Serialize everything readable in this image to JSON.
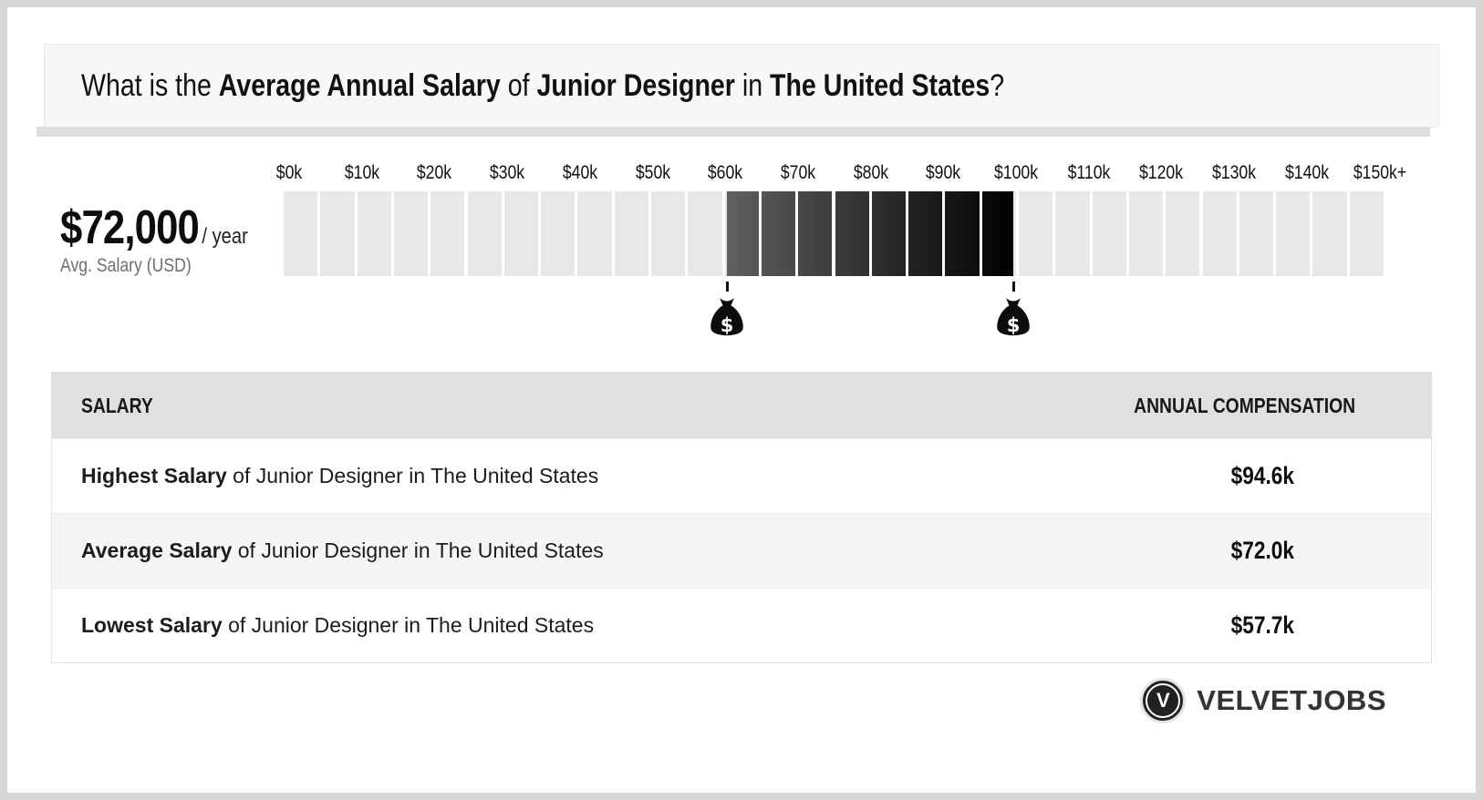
{
  "page": {
    "background": "#d6d6d6",
    "card_background": "#ffffff"
  },
  "header": {
    "title_parts": [
      {
        "text": "What is the ",
        "bold": false
      },
      {
        "text": "Average Annual Salary",
        "bold": true
      },
      {
        "text": " of ",
        "bold": false
      },
      {
        "text": "Junior Designer",
        "bold": true
      },
      {
        "text": " in ",
        "bold": false
      },
      {
        "text": "The United States",
        "bold": true
      },
      {
        "text": "?",
        "bold": false
      }
    ]
  },
  "chart_data": {
    "type": "bar",
    "subtype": "salary-range-scale",
    "title": "Average Annual Salary of Junior Designer in The United States",
    "avg_salary_display": "$72,000",
    "avg_salary_suffix": "/ year",
    "avg_salary_caption": "Avg. Salary (USD)",
    "axis_ticks": [
      "$0k",
      "$10k",
      "$20k",
      "$30k",
      "$40k",
      "$50k",
      "$60k",
      "$70k",
      "$80k",
      "$90k",
      "$100k",
      "$110k",
      "$120k",
      "$130k",
      "$140k",
      "$150k+"
    ],
    "axis_min_k": 0,
    "axis_max_k": 150,
    "segment_count": 30,
    "segment_value_k": 5,
    "values": {
      "lowest_k": 57.7,
      "average_k": 72.0,
      "highest_k": 94.6
    },
    "markers": [
      {
        "name": "lowest-salary-marker",
        "value_k": 57.7
      },
      {
        "name": "highest-salary-marker",
        "value_k": 94.6
      }
    ],
    "layout": {
      "first_tick_pct": 0.5,
      "tick_spacing_pct": 6.592,
      "highlight_start_pct": 40.2,
      "highlight_end_pct": 66.2,
      "gap_pct": 0.25
    },
    "colors": {
      "segment_light": "#e8e8e8",
      "gradient_start": "#606060",
      "gradient_end": "#000000",
      "marker": "#0c0c0c"
    }
  },
  "table": {
    "headers": [
      "SALARY",
      "ANNUAL COMPENSATION"
    ],
    "rows": [
      {
        "label_bold": "Highest Salary",
        "label_rest": " of Junior Designer in The United States",
        "value": "$94.6k"
      },
      {
        "label_bold": "Average Salary",
        "label_rest": " of Junior Designer in The United States",
        "value": "$72.0k"
      },
      {
        "label_bold": "Lowest Salary",
        "label_rest": " of Junior Designer in The United States",
        "value": "$57.7k"
      }
    ]
  },
  "footer": {
    "logo_letter": "V",
    "logo_text": "VELVETJOBS"
  }
}
